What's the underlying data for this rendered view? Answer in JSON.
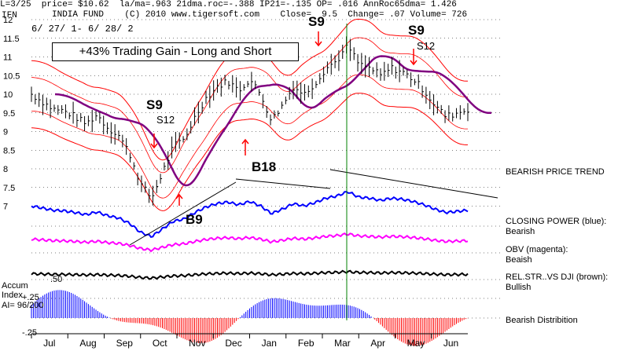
{
  "header": {
    "line1": "L=3/25  price= $10.62  la/ma=.963 21dma.roc=-.388 IP21=-.135 OP= .016 AnnRoc65dma= 1.426",
    "line2": "INDIA FUND    (C) 2010 www.tigersoft.com    Close=  9.5  Change= .07 Volume= 726",
    "ticker": "IFN",
    "date_range": "6/ 27/ 1- 6/ 28/ 2"
  },
  "gain_box": "+43% Trading Gain - Long and Short",
  "notes": {
    "trend": "BEARISH PRICE TREND",
    "closing_power": [
      "CLOSING POWER (blue):",
      "Bearish"
    ],
    "obv": [
      "OBV (magenta):",
      "Beaish"
    ],
    "relstr": [
      "REL.STR..VS DJI (brown):",
      "Bullish"
    ],
    "distribution": "Bearish Distribition"
  },
  "accum": {
    "label1": "Accum",
    "label2": "Index",
    "label3": "AI= 96/200",
    "plus": "+.25",
    "zero": "0",
    "minus": "-.25",
    "fifty": ".50"
  },
  "signals": [
    {
      "label": "S9",
      "sub": "S12",
      "type": "sell",
      "x_index": 58
    },
    {
      "label": "B18",
      "sub": "",
      "type": "buy",
      "x_index": 101
    },
    {
      "label": "B9",
      "sub": "",
      "type": "buy",
      "x_index": 76
    },
    {
      "label": "S9",
      "sub": "",
      "type": "sell",
      "x_index": 135
    },
    {
      "label": "S9",
      "sub": "S12",
      "type": "sell",
      "x_index": 178
    }
  ],
  "colors": {
    "price": "#000000",
    "bands": "#ff0000",
    "ma": "#800080",
    "closing_power": "#0000ff",
    "obv": "#ff00ff",
    "relstr": "#000000",
    "accum_pos": "#0000ff",
    "accum_neg": "#ff0000",
    "vline": "#008000"
  },
  "chart_data": {
    "type": "line",
    "title": "INDIA FUND",
    "months": [
      "Jul",
      "Aug",
      "Sep",
      "Oct",
      "Nov",
      "Dec",
      "Jan",
      "Feb",
      "Mar",
      "Apr",
      "May",
      "Jun"
    ],
    "y_ticks": [
      "12",
      "11.5",
      "11",
      "10.5",
      "10",
      "9.5",
      "9",
      "8.5",
      "8",
      "7.5",
      "7"
    ],
    "ylim": [
      6.8,
      12
    ],
    "price_close": [
      10.0,
      9.8,
      9.6,
      9.55,
      9.4,
      9.2,
      9.45,
      9.1,
      8.9,
      8.4,
      7.6,
      7.2,
      7.9,
      8.6,
      8.8,
      9.4,
      9.9,
      10.2,
      10.35,
      10.1,
      10.4,
      10.0,
      9.3,
      9.7,
      10.2,
      10.0,
      10.3,
      10.7,
      10.9,
      11.3,
      10.8,
      10.7,
      10.5,
      10.7,
      10.6,
      10.4,
      10.1,
      9.7,
      9.4,
      9.5,
      9.6
    ],
    "series": [
      {
        "name": "CLOSING POWER (blue)"
      },
      {
        "name": "OBV (magenta)"
      },
      {
        "name": "REL.STR..VS DJI (brown)"
      },
      {
        "name": "Accum Index"
      }
    ],
    "accum_ylim": [
      -0.3,
      0.55
    ],
    "grid": true
  }
}
